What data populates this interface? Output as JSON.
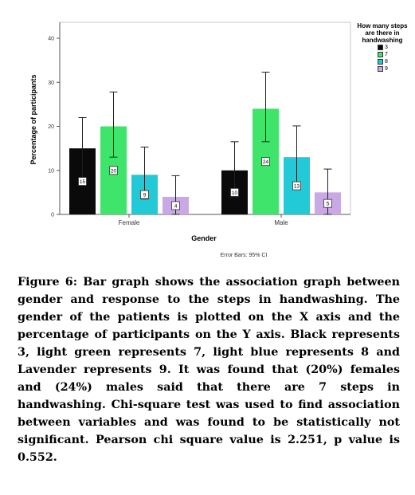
{
  "chart_data": {
    "type": "bar",
    "categories": [
      "Female",
      "Male"
    ],
    "xlabel": "Gender",
    "ylabel": "Percentage of participants",
    "ylim": [
      0,
      40
    ],
    "yticks": [
      0,
      10,
      20,
      30,
      40
    ],
    "legend_title": "How many steps are there in handwashing",
    "legend_position": "top-right",
    "footnote": "Error Bars: 95% CI",
    "grid": false,
    "series": [
      {
        "name": "3",
        "color": "#0a0a0a",
        "values": [
          15,
          10
        ],
        "labels": [
          "15",
          "10"
        ],
        "ci_low": [
          8,
          4
        ],
        "ci_high": [
          22,
          16.5
        ]
      },
      {
        "name": "7",
        "color": "#3fe46b",
        "values": [
          20,
          24
        ],
        "labels": [
          "20",
          "24"
        ],
        "ci_low": [
          13,
          16.5
        ],
        "ci_high": [
          27.8,
          32.3
        ]
      },
      {
        "name": "8",
        "color": "#22c9d6",
        "values": [
          9,
          13
        ],
        "labels": [
          "9",
          "13"
        ],
        "ci_low": [
          3.5,
          6.5
        ],
        "ci_high": [
          15.3,
          20.1
        ]
      },
      {
        "name": "9",
        "color": "#c9a8e6",
        "values": [
          4,
          5
        ],
        "labels": [
          "4",
          "5"
        ],
        "ci_low": [
          0,
          0
        ],
        "ci_high": [
          8.8,
          10.3
        ]
      }
    ]
  },
  "caption": "Figure 6: Bar graph shows the association graph between gender and response to the steps in handwashing. The gender of the patients is plotted on the X axis and the percentage of participants on the Y axis. Black represents 3, light green represents 7, light blue represents 8 and Lavender represents 9. It was found that (20%) females and (24%) males said that there are 7 steps in handwashing. Chi-square test was used to find association between variables and was found to be statistically not significant. Pearson chi square value is 2.251, p value is 0.552."
}
